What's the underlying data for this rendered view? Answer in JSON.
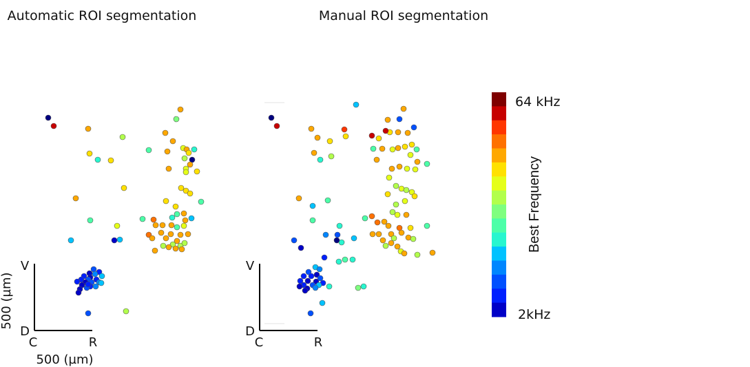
{
  "chart_data": [
    {
      "type": "scatter",
      "title": "Automatic ROI segmentation",
      "scale_bar": {
        "vertical_label": "500 (µm)",
        "horizontal_label": "500 (µm)",
        "top": "V",
        "bottom": "D",
        "left": "C",
        "right": "R"
      },
      "value_units": "Best Frequency (color index 0–15, 2 kHz → 64 kHz)",
      "points": [
        [
          70,
          171,
          0
        ],
        [
          78,
          183,
          15
        ],
        [
          262,
          159,
          12
        ],
        [
          256,
          173,
          8
        ],
        [
          240,
          193,
          12
        ],
        [
          251,
          205,
          12
        ],
        [
          243,
          220,
          12
        ],
        [
          266,
          215,
          10
        ],
        [
          271,
          217,
          12
        ],
        [
          282,
          217,
          6
        ],
        [
          274,
          222,
          11
        ],
        [
          268,
          230,
          9
        ],
        [
          279,
          232,
          0
        ],
        [
          276,
          239,
          12
        ],
        [
          245,
          245,
          12
        ],
        [
          270,
          245,
          10
        ],
        [
          270,
          250,
          10
        ],
        [
          286,
          249,
          11
        ],
        [
          128,
          187,
          12
        ],
        [
          178,
          199,
          9
        ],
        [
          216,
          218,
          7
        ],
        [
          130,
          223,
          11
        ],
        [
          142,
          232,
          6
        ],
        [
          161,
          233,
          11
        ],
        [
          180,
          273,
          11
        ],
        [
          110,
          288,
          12
        ],
        [
          241,
          292,
          11
        ],
        [
          255,
          300,
          11
        ],
        [
          263,
          273,
          11
        ],
        [
          270,
          277,
          11
        ],
        [
          276,
          281,
          11
        ],
        [
          292,
          293,
          7
        ],
        [
          257,
          311,
          7
        ],
        [
          267,
          310,
          12
        ],
        [
          250,
          316,
          6
        ],
        [
          269,
          320,
          12
        ],
        [
          278,
          317,
          5
        ],
        [
          207,
          318,
          7
        ],
        [
          223,
          319,
          13
        ],
        [
          170,
          328,
          10
        ],
        [
          131,
          320,
          7
        ],
        [
          226,
          327,
          12
        ],
        [
          236,
          327,
          12
        ],
        [
          249,
          327,
          12
        ],
        [
          257,
          330,
          7
        ],
        [
          267,
          328,
          10
        ],
        [
          216,
          341,
          13
        ],
        [
          234,
          338,
          12
        ],
        [
          248,
          340,
          12
        ],
        [
          262,
          341,
          12
        ],
        [
          273,
          340,
          12
        ],
        [
          221,
          346,
          12
        ],
        [
          241,
          346,
          12
        ],
        [
          257,
          350,
          12
        ],
        [
          262,
          357,
          9
        ],
        [
          268,
          353,
          9
        ],
        [
          251,
          355,
          9
        ],
        [
          237,
          357,
          9
        ],
        [
          264,
          362,
          12
        ],
        [
          255,
          361,
          12
        ],
        [
          225,
          364,
          12
        ],
        [
          245,
          359,
          12
        ],
        [
          166,
          349,
          1
        ],
        [
          174,
          348,
          5
        ],
        [
          103,
          349,
          5
        ],
        [
          136,
          391,
          3
        ],
        [
          144,
          395,
          2
        ],
        [
          130,
          397,
          1
        ],
        [
          138,
          398,
          4
        ],
        [
          122,
          401,
          2
        ],
        [
          148,
          401,
          5
        ],
        [
          131,
          403,
          1
        ],
        [
          118,
          406,
          2
        ],
        [
          128,
          406,
          3
        ],
        [
          140,
          406,
          2
        ],
        [
          112,
          409,
          2
        ],
        [
          124,
          410,
          1
        ],
        [
          133,
          410,
          3
        ],
        [
          144,
          410,
          4
        ],
        [
          119,
          414,
          1
        ],
        [
          131,
          416,
          2
        ],
        [
          139,
          416,
          4
        ],
        [
          147,
          411,
          5
        ],
        [
          126,
          418,
          3
        ],
        [
          116,
          420,
          1
        ],
        [
          114,
          425,
          1
        ],
        [
          128,
          413,
          2
        ],
        [
          128,
          455,
          3
        ],
        [
          183,
          452,
          9
        ]
      ]
    },
    {
      "type": "scatter",
      "title": "Manual ROI segmentation",
      "scale_bar": {
        "vertical_label": "",
        "horizontal_label": "",
        "top": "V",
        "bottom": "D",
        "left": "C",
        "right": "R"
      },
      "value_units": "Best Frequency (color index 0–15, 2 kHz → 64 kHz)",
      "points": [
        [
          517,
          152,
          5
        ],
        [
          586,
          158,
          12
        ],
        [
          394,
          171,
          0
        ],
        [
          402,
          183,
          15
        ],
        [
          563,
          174,
          12
        ],
        [
          580,
          173,
          3
        ],
        [
          601,
          185,
          3
        ],
        [
          452,
          187,
          12
        ],
        [
          500,
          188,
          14
        ],
        [
          566,
          192,
          11
        ],
        [
          578,
          192,
          12
        ],
        [
          592,
          193,
          12
        ],
        [
          540,
          197,
          15
        ],
        [
          560,
          190,
          15
        ],
        [
          502,
          198,
          11
        ],
        [
          479,
          205,
          11
        ],
        [
          461,
          200,
          12
        ],
        [
          550,
          201,
          11
        ],
        [
          542,
          216,
          7
        ],
        [
          555,
          216,
          12
        ],
        [
          570,
          217,
          10
        ],
        [
          578,
          215,
          12
        ],
        [
          588,
          213,
          11
        ],
        [
          598,
          210,
          11
        ],
        [
          605,
          217,
          7
        ],
        [
          596,
          225,
          10
        ],
        [
          456,
          222,
          12
        ],
        [
          465,
          232,
          6
        ],
        [
          481,
          227,
          9
        ],
        [
          547,
          232,
          12
        ],
        [
          569,
          245,
          12
        ],
        [
          580,
          242,
          12
        ],
        [
          591,
          245,
          10
        ],
        [
          606,
          235,
          12
        ],
        [
          620,
          238,
          7
        ],
        [
          603,
          246,
          10
        ],
        [
          565,
          258,
          10
        ],
        [
          575,
          270,
          9
        ],
        [
          583,
          274,
          10
        ],
        [
          590,
          276,
          9
        ],
        [
          598,
          279,
          10
        ],
        [
          434,
          288,
          12
        ],
        [
          476,
          291,
          7
        ],
        [
          454,
          299,
          5
        ],
        [
          563,
          282,
          11
        ],
        [
          575,
          297,
          9
        ],
        [
          588,
          292,
          10
        ],
        [
          602,
          285,
          11
        ],
        [
          454,
          320,
          7
        ],
        [
          530,
          317,
          7
        ],
        [
          540,
          314,
          13
        ],
        [
          548,
          323,
          13
        ],
        [
          558,
          322,
          12
        ],
        [
          570,
          308,
          9
        ],
        [
          577,
          312,
          10
        ],
        [
          590,
          312,
          12
        ],
        [
          564,
          328,
          12
        ],
        [
          580,
          331,
          13
        ],
        [
          596,
          331,
          11
        ],
        [
          620,
          328,
          7
        ],
        [
          493,
          328,
          6
        ],
        [
          473,
          341,
          4
        ],
        [
          490,
          341,
          3
        ],
        [
          514,
          346,
          5
        ],
        [
          541,
          340,
          12
        ],
        [
          550,
          340,
          12
        ],
        [
          556,
          349,
          12
        ],
        [
          568,
          340,
          12
        ],
        [
          572,
          346,
          9
        ],
        [
          583,
          338,
          12
        ],
        [
          593,
          345,
          12
        ],
        [
          600,
          347,
          9
        ],
        [
          427,
          349,
          3
        ],
        [
          437,
          360,
          1
        ],
        [
          496,
          352,
          6
        ],
        [
          489,
          349,
          0
        ],
        [
          568,
          353,
          12
        ],
        [
          560,
          357,
          9
        ],
        [
          577,
          358,
          12
        ],
        [
          582,
          365,
          10
        ],
        [
          587,
          368,
          12
        ],
        [
          606,
          370,
          9
        ],
        [
          628,
          367,
          12
        ],
        [
          492,
          380,
          6
        ],
        [
          501,
          377,
          7
        ],
        [
          512,
          377,
          6
        ],
        [
          471,
          374,
          2
        ],
        [
          458,
          388,
          5
        ],
        [
          464,
          391,
          4
        ],
        [
          448,
          395,
          3
        ],
        [
          460,
          399,
          1
        ],
        [
          441,
          401,
          2
        ],
        [
          452,
          401,
          2
        ],
        [
          465,
          404,
          3
        ],
        [
          436,
          408,
          2
        ],
        [
          447,
          408,
          1
        ],
        [
          459,
          409,
          1
        ],
        [
          469,
          411,
          2
        ],
        [
          441,
          414,
          2
        ],
        [
          454,
          414,
          3
        ],
        [
          463,
          414,
          5
        ],
        [
          435,
          416,
          1
        ],
        [
          446,
          419,
          1
        ],
        [
          478,
          416,
          6
        ],
        [
          458,
          418,
          4
        ],
        [
          443,
          422,
          1
        ],
        [
          520,
          418,
          8
        ],
        [
          528,
          416,
          6
        ],
        [
          468,
          440,
          5
        ],
        [
          451,
          455,
          3
        ]
      ]
    }
  ],
  "colorbar": {
    "label": "Best Frequency",
    "max_label": "64 kHz",
    "min_label": "2kHz",
    "colors": [
      "#00007f",
      "#0000c7",
      "#0020ff",
      "#0050ff",
      "#0086ff",
      "#00c2ff",
      "#28f6cf",
      "#4cffa8",
      "#7fff7f",
      "#b2ff4c",
      "#e5ff19",
      "#ffe100",
      "#ffa800",
      "#ff7100",
      "#ff3600",
      "#c70000",
      "#7f0000"
    ]
  }
}
